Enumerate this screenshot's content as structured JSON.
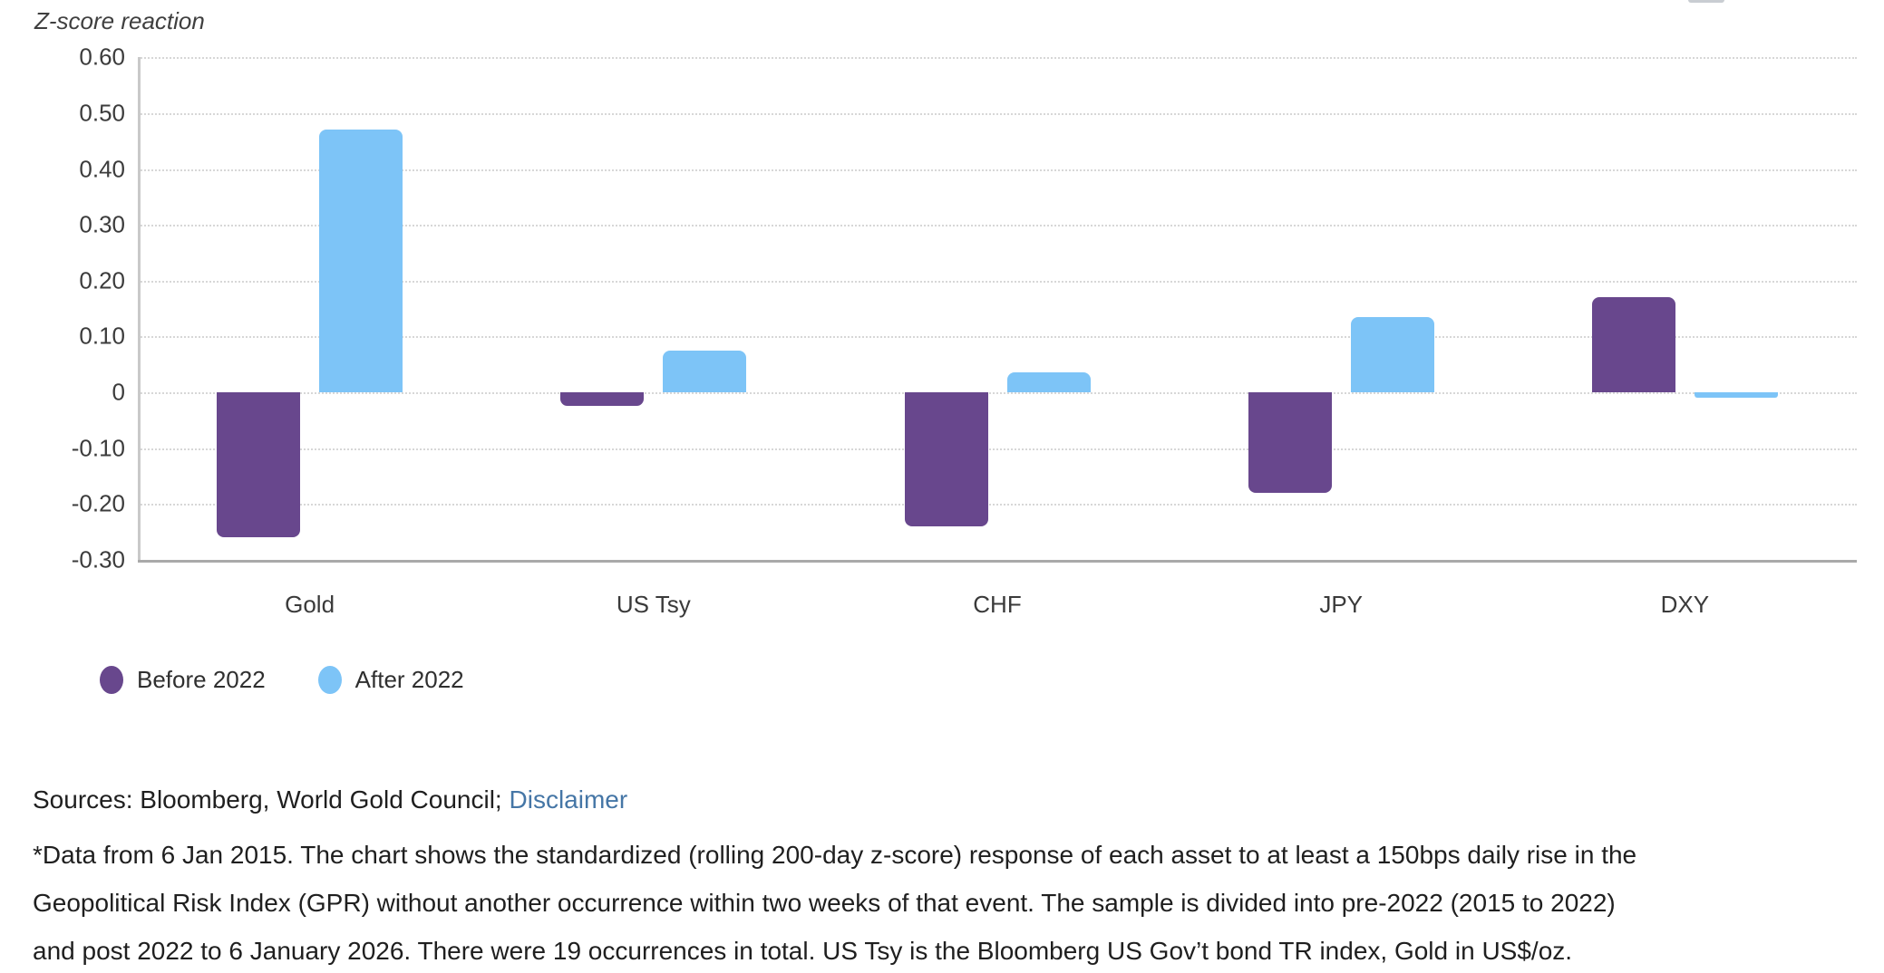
{
  "chart_data": {
    "type": "bar",
    "title": "Z-score reaction",
    "categories": [
      "Gold",
      "US Tsy",
      "CHF",
      "JPY",
      "DXY"
    ],
    "series": [
      {
        "name": "Before 2022",
        "color": "#68478d",
        "values": [
          -0.26,
          -0.025,
          -0.24,
          -0.18,
          0.17
        ]
      },
      {
        "name": "After 2022",
        "color": "#7dc4f7",
        "values": [
          0.47,
          0.075,
          0.035,
          0.135,
          -0.01
        ]
      }
    ],
    "ylim": [
      -0.3,
      0.6
    ],
    "ytick_step": 0.1,
    "yticks": [
      "0.60",
      "0.50",
      "0.40",
      "0.30",
      "0.20",
      "0.10",
      "0",
      "-0.10",
      "-0.20",
      "-0.30"
    ],
    "grid": "horizontal-dotted",
    "legend_position": "bottom-left"
  },
  "footer": {
    "sources_prefix": "Sources: Bloomberg, World Gold Council; ",
    "disclaimer_link": "Disclaimer",
    "footnote_lines": [
      "*Data from 6 Jan 2015. The chart shows the standardized (rolling 200-day z-score) response of each asset to at least a 150bps daily rise in the",
      "Geopolitical Risk Index (GPR) without another occurrence within two weeks of that event. The sample is divided into pre-2022 (2015 to 2022)",
      "and post 2022 to 6 January 2026. There were 19 occurrences in total. US Tsy is the Bloomberg US Gov’t bond TR index, Gold in US$/oz."
    ]
  },
  "colors": {
    "before_2022": "#68478d",
    "after_2022": "#7dc4f7",
    "gridline": "#d7d7d7",
    "axis_line": "#a9a9a9",
    "link": "#4576a6"
  }
}
